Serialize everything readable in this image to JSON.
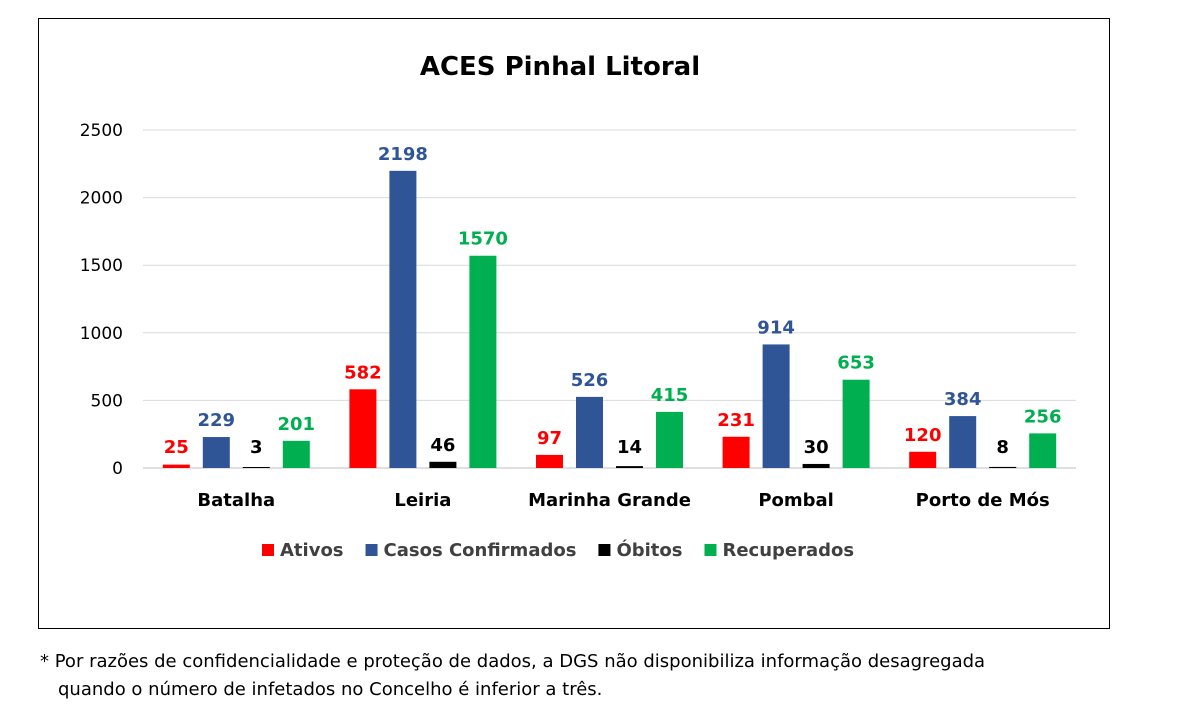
{
  "chart_data": {
    "type": "bar",
    "title": "ACES Pinhal Litoral",
    "categories": [
      "Batalha",
      "Leiria",
      "Marinha Grande",
      "Pombal",
      "Porto de Mós"
    ],
    "series": [
      {
        "name": "Ativos",
        "color": "#ff0000",
        "values": [
          25,
          582,
          97,
          231,
          120
        ]
      },
      {
        "name": "Casos Confirmados",
        "color": "#2f5597",
        "values": [
          229,
          2198,
          526,
          914,
          384
        ]
      },
      {
        "name": "Óbitos",
        "color": "#000000",
        "values": [
          3,
          46,
          14,
          30,
          8
        ]
      },
      {
        "name": "Recuperados",
        "color": "#00b050",
        "values": [
          201,
          1570,
          415,
          653,
          256
        ]
      }
    ],
    "ylim": [
      0,
      2500
    ],
    "yticks": [
      0,
      500,
      1000,
      1500,
      2000,
      2500
    ],
    "grid": true,
    "legend": "bottom"
  },
  "footnote": {
    "line1": "* Por razões de confidencialidade e proteção de dados, a DGS não disponibiliza informação desagregada",
    "line2": "quando o número de infetados no Concelho é inferior a três."
  }
}
